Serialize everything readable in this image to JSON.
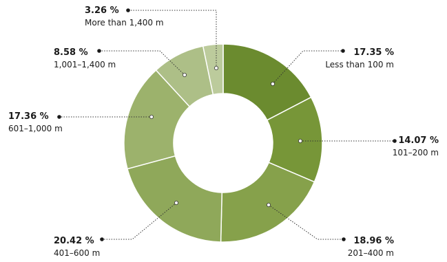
{
  "chart_data": {
    "type": "pie",
    "donut": true,
    "slices": [
      {
        "value": 17.35,
        "value_label": "17.35 %",
        "label": "Less than 100 m",
        "color": "#6b8b2f"
      },
      {
        "value": 14.07,
        "value_label": "14.07 %",
        "label": "101–200 m",
        "color": "#779638"
      },
      {
        "value": 18.96,
        "value_label": "18.96 %",
        "label": "201–400 m",
        "color": "#86a14b"
      },
      {
        "value": 20.42,
        "value_label": "20.42 %",
        "label": "401–600 m",
        "color": "#8fa85a"
      },
      {
        "value": 17.36,
        "value_label": "17.36 %",
        "label": "601–1,000 m",
        "color": "#9cb26c"
      },
      {
        "value": 8.58,
        "value_label": "8.58 %",
        "label": "1,001–1,400 m",
        "color": "#adbf87"
      },
      {
        "value": 3.26,
        "value_label": "3.26 %",
        "label": "More than 1,400 m",
        "color": "#bccb9c"
      }
    ]
  }
}
